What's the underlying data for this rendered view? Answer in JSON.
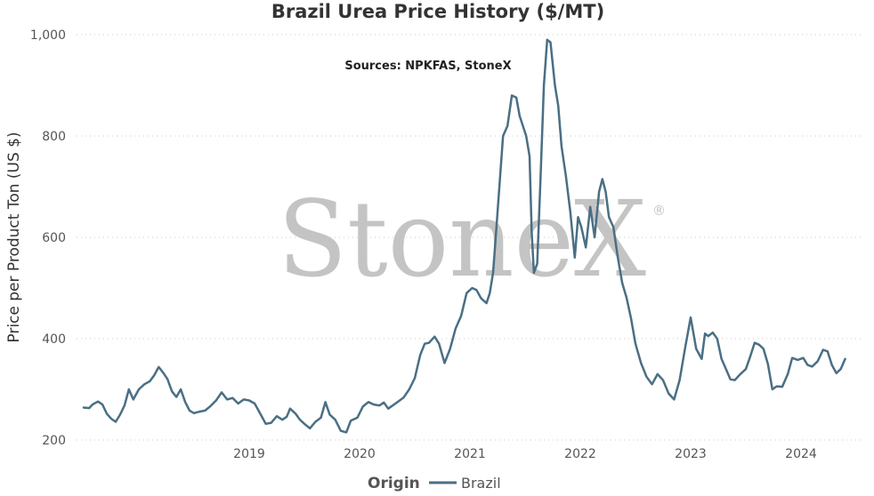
{
  "chart_data": {
    "type": "line",
    "title": "Brazil Urea Price History ($/MT)",
    "subtitle": "Sources: NPKFAS, StoneX",
    "ylabel": "Price per Product Ton (US $)",
    "xlabel": "",
    "xlim": [
      2018.0,
      2025.0
    ],
    "ylim": [
      200,
      1000
    ],
    "y_ticks": [
      200,
      400,
      600,
      800,
      1000
    ],
    "y_tick_labels": [
      "200",
      "400",
      "600",
      "800",
      "1,000"
    ],
    "x_ticks": [
      2019,
      2020,
      2021,
      2022,
      2023,
      2024
    ],
    "x_tick_labels": [
      "2019",
      "2020",
      "2021",
      "2022",
      "2023",
      "2024"
    ],
    "grid": true,
    "legend": {
      "title": "Origin",
      "position": "bottom"
    },
    "watermark": "StoneX",
    "watermark_mark": "®",
    "series": [
      {
        "name": "Brazil",
        "color": "#4a6f84",
        "points": [
          [
            2018.0,
            264
          ],
          [
            2018.05,
            263
          ],
          [
            2018.08,
            270
          ],
          [
            2018.13,
            276
          ],
          [
            2018.17,
            270
          ],
          [
            2018.21,
            252
          ],
          [
            2018.25,
            242
          ],
          [
            2018.29,
            236
          ],
          [
            2018.33,
            250
          ],
          [
            2018.37,
            268
          ],
          [
            2018.41,
            300
          ],
          [
            2018.45,
            280
          ],
          [
            2018.5,
            300
          ],
          [
            2018.55,
            310
          ],
          [
            2018.6,
            316
          ],
          [
            2018.64,
            328
          ],
          [
            2018.68,
            344
          ],
          [
            2018.72,
            333
          ],
          [
            2018.76,
            320
          ],
          [
            2018.8,
            296
          ],
          [
            2018.84,
            285
          ],
          [
            2018.88,
            300
          ],
          [
            2018.92,
            275
          ],
          [
            2018.96,
            258
          ],
          [
            2019.0,
            253
          ],
          [
            2019.05,
            256
          ],
          [
            2019.1,
            258
          ],
          [
            2019.15,
            267
          ],
          [
            2019.2,
            278
          ],
          [
            2019.25,
            294
          ],
          [
            2019.3,
            280
          ],
          [
            2019.35,
            283
          ],
          [
            2019.4,
            272
          ],
          [
            2019.45,
            280
          ],
          [
            2019.5,
            278
          ],
          [
            2019.55,
            272
          ],
          [
            2019.6,
            252
          ],
          [
            2019.65,
            232
          ],
          [
            2019.7,
            234
          ],
          [
            2019.75,
            247
          ],
          [
            2019.8,
            240
          ],
          [
            2019.84,
            246
          ],
          [
            2019.87,
            262
          ],
          [
            2019.92,
            252
          ],
          [
            2019.96,
            240
          ],
          [
            2020.0,
            232
          ],
          [
            2020.05,
            223
          ],
          [
            2020.1,
            236
          ],
          [
            2020.15,
            244
          ],
          [
            2020.19,
            275
          ],
          [
            2020.23,
            250
          ],
          [
            2020.28,
            240
          ],
          [
            2020.33,
            218
          ],
          [
            2020.38,
            215
          ],
          [
            2020.42,
            238
          ],
          [
            2020.48,
            244
          ],
          [
            2020.53,
            266
          ],
          [
            2020.58,
            275
          ],
          [
            2020.63,
            270
          ],
          [
            2020.68,
            268
          ],
          [
            2020.72,
            274
          ],
          [
            2020.76,
            262
          ],
          [
            2020.8,
            268
          ],
          [
            2020.85,
            276
          ],
          [
            2020.9,
            284
          ],
          [
            2020.95,
            300
          ],
          [
            2021.0,
            322
          ],
          [
            2021.05,
            368
          ],
          [
            2021.09,
            390
          ],
          [
            2021.13,
            392
          ],
          [
            2021.18,
            404
          ],
          [
            2021.22,
            390
          ],
          [
            2021.27,
            352
          ],
          [
            2021.32,
            380
          ],
          [
            2021.37,
            420
          ],
          [
            2021.42,
            445
          ],
          [
            2021.47,
            490
          ],
          [
            2021.52,
            500
          ],
          [
            2021.56,
            496
          ],
          [
            2021.6,
            480
          ],
          [
            2021.65,
            470
          ],
          [
            2021.68,
            490
          ],
          [
            2021.71,
            530
          ],
          [
            2021.74,
            620
          ],
          [
            2021.77,
            710
          ],
          [
            2021.8,
            800
          ],
          [
            2021.84,
            820
          ],
          [
            2021.88,
            880
          ],
          [
            2021.92,
            876
          ],
          [
            2021.95,
            840
          ],
          [
            2021.98,
            820
          ],
          [
            2022.01,
            800
          ],
          [
            2022.04,
            760
          ],
          [
            2022.06,
            610
          ],
          [
            2022.08,
            530
          ],
          [
            2022.11,
            548
          ],
          [
            2022.14,
            720
          ],
          [
            2022.17,
            900
          ],
          [
            2022.2,
            990
          ],
          [
            2022.23,
            985
          ],
          [
            2022.27,
            900
          ],
          [
            2022.3,
            860
          ],
          [
            2022.33,
            780
          ],
          [
            2022.37,
            720
          ],
          [
            2022.41,
            650
          ],
          [
            2022.45,
            560
          ],
          [
            2022.48,
            640
          ],
          [
            2022.51,
            620
          ],
          [
            2022.55,
            580
          ],
          [
            2022.59,
            660
          ],
          [
            2022.63,
            600
          ],
          [
            2022.67,
            690
          ],
          [
            2022.7,
            715
          ],
          [
            2022.73,
            690
          ],
          [
            2022.76,
            640
          ],
          [
            2022.8,
            620
          ],
          [
            2022.84,
            560
          ],
          [
            2022.88,
            510
          ],
          [
            2022.92,
            480
          ],
          [
            2022.96,
            440
          ],
          [
            2023.0,
            390
          ],
          [
            2023.05,
            352
          ],
          [
            2023.1,
            325
          ],
          [
            2023.15,
            310
          ],
          [
            2023.2,
            330
          ],
          [
            2023.25,
            318
          ],
          [
            2023.3,
            292
          ],
          [
            2023.35,
            280
          ],
          [
            2023.4,
            318
          ],
          [
            2023.45,
            382
          ],
          [
            2023.5,
            442
          ],
          [
            2023.55,
            380
          ],
          [
            2023.6,
            360
          ],
          [
            2023.63,
            410
          ],
          [
            2023.66,
            405
          ],
          [
            2023.7,
            412
          ],
          [
            2023.74,
            400
          ],
          [
            2023.78,
            360
          ],
          [
            2023.82,
            340
          ],
          [
            2023.86,
            320
          ],
          [
            2023.9,
            318
          ],
          [
            2023.95,
            330
          ],
          [
            2024.0,
            340
          ],
          [
            2024.04,
            365
          ],
          [
            2024.08,
            392
          ],
          [
            2024.12,
            388
          ],
          [
            2024.16,
            380
          ],
          [
            2024.2,
            350
          ],
          [
            2024.24,
            300
          ],
          [
            2024.28,
            306
          ],
          [
            2024.33,
            305
          ],
          [
            2024.38,
            330
          ],
          [
            2024.42,
            362
          ],
          [
            2024.47,
            358
          ],
          [
            2024.52,
            362
          ],
          [
            2024.56,
            348
          ],
          [
            2024.6,
            345
          ],
          [
            2024.65,
            355
          ],
          [
            2024.7,
            378
          ],
          [
            2024.74,
            375
          ],
          [
            2024.78,
            348
          ],
          [
            2024.82,
            332
          ],
          [
            2024.86,
            340
          ],
          [
            2024.9,
            360
          ]
        ]
      }
    ]
  }
}
